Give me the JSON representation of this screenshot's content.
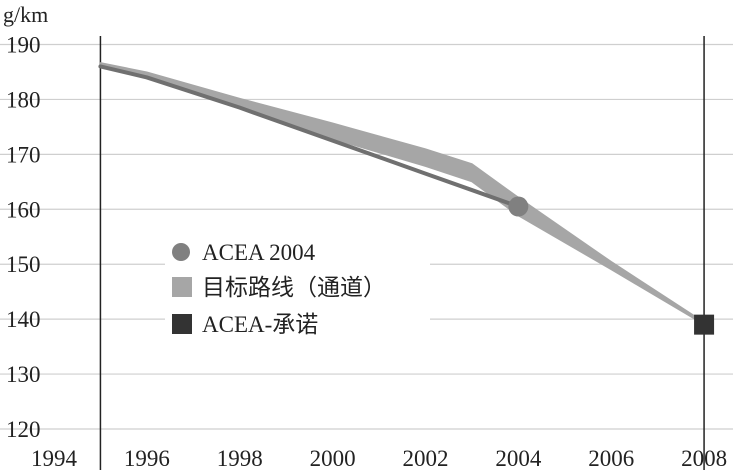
{
  "chart_data": {
    "type": "line",
    "ylabel": "g/km",
    "x_ticks": [
      1994,
      1996,
      1998,
      2000,
      2002,
      2004,
      2006,
      2008
    ],
    "y_ticks": [
      120,
      130,
      140,
      150,
      160,
      170,
      180,
      190
    ],
    "xlim": [
      1994,
      2008.3
    ],
    "ylim": [
      118,
      193
    ],
    "grid": "horizontal",
    "vlines": [
      1995,
      2008
    ],
    "legend": [
      {
        "name": "ACEA 2004",
        "marker": "circle",
        "color": "#808080"
      },
      {
        "name": "目标路线（通道）",
        "marker": "square",
        "color": "#a6a6a6"
      },
      {
        "name": "ACEA-承诺",
        "marker": "square",
        "color": "#333333"
      }
    ],
    "series": [
      {
        "name": "ACEA 2004",
        "type": "line",
        "color": "#707070",
        "x": [
          1995,
          1996,
          1998,
          2000,
          2002,
          2003,
          2004
        ],
        "y": [
          186,
          184,
          178.5,
          172.5,
          166.5,
          163.5,
          160.5
        ]
      },
      {
        "name": "目标路线（通道）",
        "type": "band",
        "color": "#a6a6a6",
        "x": [
          1995,
          1996,
          1998,
          2000,
          2002,
          2003,
          2004,
          2006,
          2008
        ],
        "upper": [
          186.7,
          185,
          180.2,
          175.7,
          171,
          168.3,
          162.2,
          150.5,
          139.5
        ],
        "lower": [
          185.9,
          183.9,
          178.8,
          172.8,
          167.8,
          165,
          158.8,
          149,
          139
        ]
      },
      {
        "name": "ACEA-承诺",
        "type": "point",
        "color": "#333333",
        "x": [
          2008
        ],
        "y": [
          139
        ]
      }
    ],
    "markers": [
      {
        "series": "ACEA 2004",
        "shape": "circle",
        "x": 2004,
        "y": 160.5,
        "color": "#808080"
      }
    ]
  }
}
